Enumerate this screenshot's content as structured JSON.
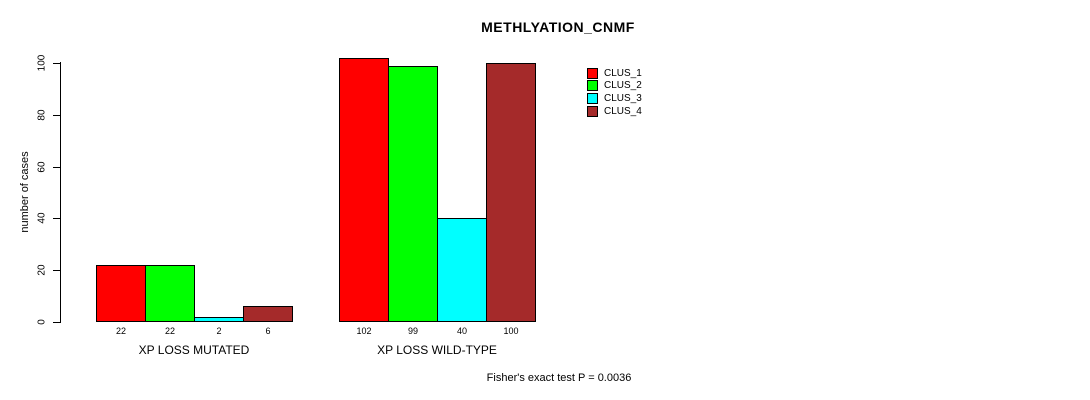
{
  "chart_data": {
    "type": "bar",
    "title": "METHLYATION_CNMF",
    "ylabel": "number of cases",
    "xlabel": "",
    "ylim": [
      0,
      100
    ],
    "yticks": [
      0,
      20,
      40,
      60,
      80,
      100
    ],
    "grid": false,
    "legend_position": "top-right",
    "categories": [
      "XP LOSS MUTATED",
      "XP LOSS WILD-TYPE"
    ],
    "series": [
      {
        "name": "CLUS_1",
        "color": "#FF0000",
        "values": [
          22,
          102
        ]
      },
      {
        "name": "CLUS_2",
        "color": "#00FF00",
        "values": [
          22,
          99
        ]
      },
      {
        "name": "CLUS_3",
        "color": "#00FFFF",
        "values": [
          2,
          40
        ]
      },
      {
        "name": "CLUS_4",
        "color": "#A52A2A",
        "values": [
          6,
          100
        ]
      }
    ],
    "bar_value_labels": [
      [
        "22",
        "22",
        "2",
        "6"
      ],
      [
        "102",
        "99",
        "40",
        "100"
      ]
    ],
    "annotation": "Fisher's exact test P = 0.0036"
  }
}
